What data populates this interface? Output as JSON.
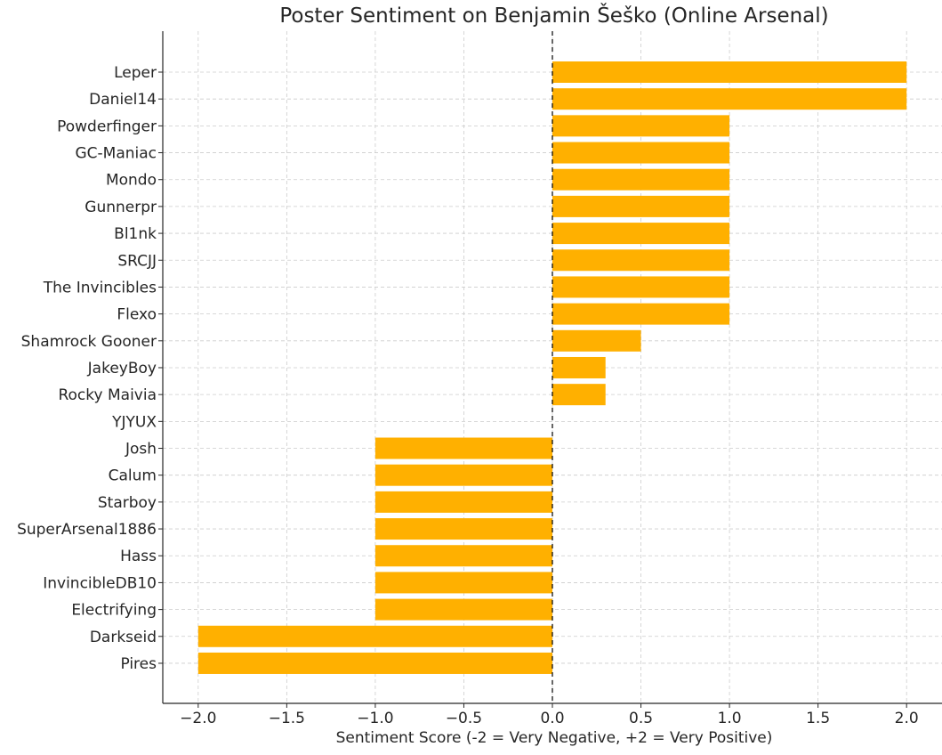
{
  "chart_data": {
    "type": "bar",
    "orientation": "horizontal",
    "title": "Poster Sentiment on Benjamin Šeško (Online Arsenal)",
    "xlabel": "Sentiment Score (-2 = Very Negative, +2 = Very Positive)",
    "ylabel": "",
    "xlim": [
      -2.2,
      2.2
    ],
    "xticks": [
      -2.0,
      -1.5,
      -1.0,
      -0.5,
      0.0,
      0.5,
      1.0,
      1.5,
      2.0
    ],
    "xtick_labels": [
      "−2.0",
      "−1.5",
      "−1.0",
      "−0.5",
      "0.0",
      "0.5",
      "1.0",
      "1.5",
      "2.0"
    ],
    "grid": true,
    "zero_line": "dashed",
    "bar_color": "#FFB000",
    "categories": [
      "Leper",
      "Daniel14",
      "Powderfinger",
      "GC-Maniac",
      "Mondo",
      "Gunnerpr",
      "Bl1nk",
      "SRCJJ",
      "The Invincibles",
      "Flexo",
      "Shamrock Gooner",
      "JakeyBoy",
      "Rocky Maivia",
      "YJYUX",
      "Josh",
      "Calum",
      "Starboy",
      "SuperArsenal1886",
      "Hass",
      "InvincibleDB10",
      "Electrifying",
      "Darkseid",
      "Pires"
    ],
    "values": [
      2.0,
      2.0,
      1.0,
      1.0,
      1.0,
      1.0,
      1.0,
      1.0,
      1.0,
      1.0,
      0.5,
      0.3,
      0.3,
      0.0,
      -1.0,
      -1.0,
      -1.0,
      -1.0,
      -1.0,
      -1.0,
      -1.0,
      -2.0,
      -2.0
    ]
  }
}
